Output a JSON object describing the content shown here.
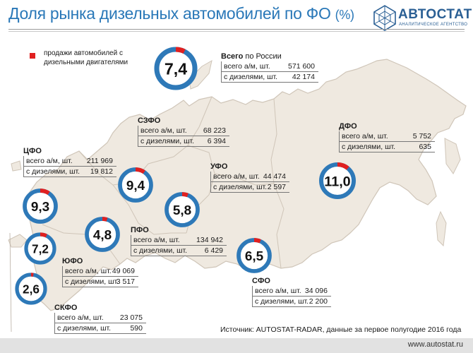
{
  "title": "Доля рынка дизельных автомобилей по ФО",
  "title_unit": "(%)",
  "logo": {
    "name": "АВТОСТАТ",
    "subtitle": "АНАЛИТИЧЕСКОЕ АГЕНТСТВО"
  },
  "legend_text": "продажи автомобилей с дизельными двигателями",
  "colors": {
    "gauge_ring": "#2e79b8",
    "diesel": "#e02020",
    "title": "#2a78b8",
    "map_fill": "#efe9e0",
    "map_stroke": "#cfc5b8"
  },
  "source": "Источник: AUTOSTAT-RADAR, данные за первое полугодие 2016 года",
  "url": "www.autostat.ru",
  "chart_data": {
    "type": "pie",
    "title": "Доля рынка дизельных автомобилей по ФО (%)",
    "unit": "%",
    "row_label_total": "всего а/м, шт.",
    "row_label_diesel": "с дизелями, шт.",
    "districts": [
      {
        "id": "total",
        "name": "Всего",
        "name_rest": " по России",
        "share": 7.4,
        "share_label": "7,4",
        "total": "571 600",
        "diesel": "42 174"
      },
      {
        "id": "szfo",
        "name": "СЗФО",
        "name_rest": "",
        "share": 9.4,
        "share_label": "9,4",
        "total": "68 223",
        "diesel": "6 394"
      },
      {
        "id": "cfo",
        "name": "ЦФО",
        "name_rest": "",
        "share": 9.3,
        "share_label": "9,3",
        "total": "211 969",
        "diesel": "19 812"
      },
      {
        "id": "ufo_ural",
        "name": "УФО",
        "name_rest": "",
        "share": 5.8,
        "share_label": "5,8",
        "total": "44 474",
        "diesel": "2 597"
      },
      {
        "id": "dfo",
        "name": "ДФО",
        "name_rest": "",
        "share": 11.0,
        "share_label": "11,0",
        "total": "5 752",
        "diesel": "635"
      },
      {
        "id": "pfo",
        "name": "ПФО",
        "name_rest": "",
        "share": 4.8,
        "share_label": "4,8",
        "total": "134 942",
        "diesel": "6 429"
      },
      {
        "id": "yufo",
        "name": "ЮФО",
        "name_rest": "",
        "share": 7.2,
        "share_label": "7,2",
        "total": "49 069",
        "diesel": "3 517"
      },
      {
        "id": "sfo",
        "name": "СФО",
        "name_rest": "",
        "share": 6.5,
        "share_label": "6,5",
        "total": "34 096",
        "diesel": "2 200"
      },
      {
        "id": "skfo",
        "name": "СКФО",
        "name_rest": "",
        "share": 2.6,
        "share_label": "2,6",
        "total": "23 075",
        "diesel": "590"
      }
    ]
  }
}
